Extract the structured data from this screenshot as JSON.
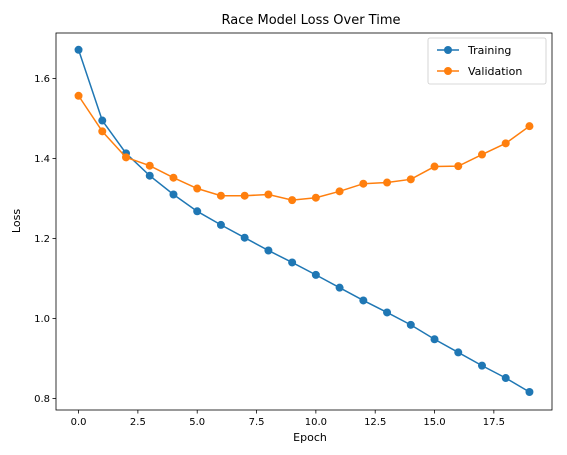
{
  "chart_data": {
    "type": "line",
    "title": "Race Model Loss Over Time",
    "xlabel": "Epoch",
    "ylabel": "Loss",
    "x": [
      0,
      1,
      2,
      3,
      4,
      5,
      6,
      7,
      8,
      9,
      10,
      11,
      12,
      13,
      14,
      15,
      16,
      17,
      18,
      19
    ],
    "xlim": [
      -0.95,
      19.95
    ],
    "ylim": [
      0.771,
      1.714
    ],
    "xticks": [
      0.0,
      2.5,
      5.0,
      7.5,
      10.0,
      12.5,
      15.0,
      17.5
    ],
    "xtick_labels": [
      "0.0",
      "2.5",
      "5.0",
      "7.5",
      "10.0",
      "12.5",
      "15.0",
      "17.5"
    ],
    "yticks": [
      0.8,
      1.0,
      1.2,
      1.4,
      1.6
    ],
    "ytick_labels": [
      "0.8",
      "1.0",
      "1.2",
      "1.4",
      "1.6"
    ],
    "grid": false,
    "legend_position": "top-right",
    "series": [
      {
        "name": "Training",
        "color": "#1f77b4",
        "values": [
          1.672,
          1.495,
          1.413,
          1.357,
          1.31,
          1.268,
          1.234,
          1.202,
          1.17,
          1.14,
          1.109,
          1.077,
          1.045,
          1.015,
          0.984,
          0.948,
          0.915,
          0.882,
          0.851,
          0.816
        ]
      },
      {
        "name": "Validation",
        "color": "#ff7f0e",
        "values": [
          1.557,
          1.468,
          1.403,
          1.382,
          1.352,
          1.325,
          1.307,
          1.307,
          1.31,
          1.296,
          1.302,
          1.318,
          1.337,
          1.34,
          1.348,
          1.38,
          1.381,
          1.41,
          1.438,
          1.481
        ]
      }
    ]
  }
}
